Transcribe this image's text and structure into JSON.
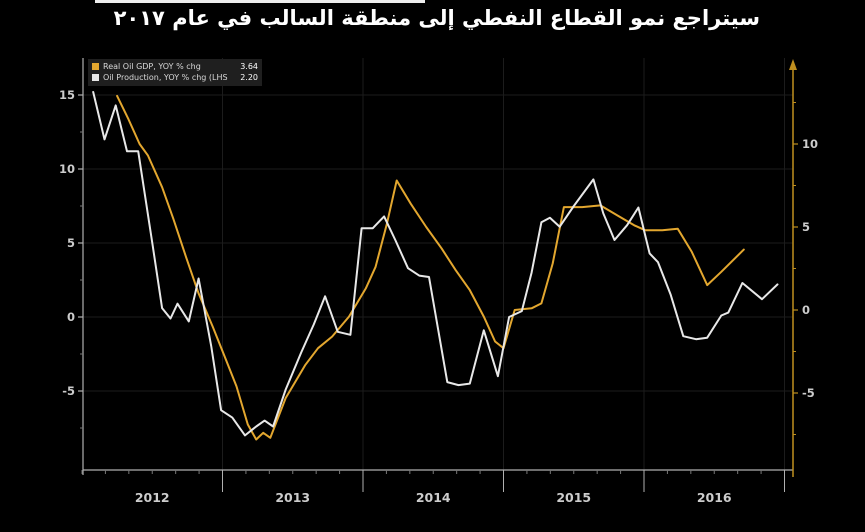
{
  "title": "سيتراجع نمو القطاع النفطي إلى منطقة السالب في عام ٢٠١٧",
  "colors": {
    "background": "#000000",
    "grid": "#1c1c1c",
    "axis": "#b0b0b0",
    "tick_label": "#cccccc",
    "minor_tick": "#777777",
    "right_axis": "#bf8f1f",
    "gdp_series": "#e3a72f",
    "production_series": "#e8e8e8",
    "legend_bg": "#1f1f1f"
  },
  "chart_data": {
    "type": "line",
    "title": "",
    "x_axis": {
      "year_labels": [
        "2012",
        "2013",
        "2014",
        "2015",
        "2016"
      ],
      "range": [
        2012.0,
        2017.06
      ],
      "minor_tick_months": 2
    },
    "left_axis": {
      "tick_labels": [
        "15",
        "10",
        "5",
        "0",
        "-5"
      ],
      "tick_values": [
        15,
        10,
        5,
        0,
        -5
      ],
      "minor_step": 2.5,
      "range": [
        -10.3,
        17.5
      ]
    },
    "right_axis": {
      "tick_labels": [
        "10",
        "5",
        "0",
        "-5"
      ],
      "tick_values": [
        10,
        5,
        0,
        -5
      ],
      "minor_step": 2.5,
      "range": [
        -9.6,
        14.9
      ],
      "arrow": "up"
    },
    "grid": {
      "horizontal_at": [
        15,
        10,
        5,
        0,
        -5
      ],
      "vertical_at_years": [
        2013,
        2014,
        2015,
        2016,
        2017
      ]
    },
    "legend_position": "top-left",
    "series": [
      {
        "name": "Real Oil GDP, YOY % chg",
        "axis": "right",
        "color_key": "gdp_series",
        "last_value_label": "3.64",
        "points": [
          [
            2012.25,
            12.9
          ],
          [
            2012.33,
            11.5
          ],
          [
            2012.41,
            10.0
          ],
          [
            2012.47,
            9.3
          ],
          [
            2012.57,
            7.4
          ],
          [
            2012.65,
            5.5
          ],
          [
            2012.74,
            3.2
          ],
          [
            2012.83,
            1.0
          ],
          [
            2012.93,
            -1.0
          ],
          [
            2013.02,
            -2.9
          ],
          [
            2013.1,
            -4.6
          ],
          [
            2013.18,
            -6.9
          ],
          [
            2013.24,
            -7.8
          ],
          [
            2013.29,
            -7.4
          ],
          [
            2013.34,
            -7.7
          ],
          [
            2013.45,
            -5.3
          ],
          [
            2013.59,
            -3.3
          ],
          [
            2013.68,
            -2.3
          ],
          [
            2013.78,
            -1.6
          ],
          [
            2013.9,
            -0.4
          ],
          [
            2014.02,
            1.3
          ],
          [
            2014.09,
            2.6
          ],
          [
            2014.17,
            5.2
          ],
          [
            2014.24,
            7.8
          ],
          [
            2014.34,
            6.4
          ],
          [
            2014.45,
            5.0
          ],
          [
            2014.56,
            3.7
          ],
          [
            2014.66,
            2.4
          ],
          [
            2014.76,
            1.2
          ],
          [
            2014.86,
            -0.4
          ],
          [
            2014.94,
            -1.9
          ],
          [
            2015.0,
            -2.3
          ],
          [
            2015.08,
            0.0
          ],
          [
            2015.2,
            0.1
          ],
          [
            2015.27,
            0.4
          ],
          [
            2015.35,
            2.8
          ],
          [
            2015.43,
            6.2
          ],
          [
            2015.56,
            6.2
          ],
          [
            2015.69,
            6.3
          ],
          [
            2015.81,
            5.7
          ],
          [
            2015.93,
            5.1
          ],
          [
            2016.01,
            4.8
          ],
          [
            2016.13,
            4.8
          ],
          [
            2016.24,
            4.9
          ],
          [
            2016.34,
            3.5
          ],
          [
            2016.45,
            1.5
          ],
          [
            2016.55,
            2.3
          ],
          [
            2016.71,
            3.64
          ]
        ]
      },
      {
        "name": "Oil Production, YOY % chg (LHS)",
        "axis": "left",
        "color_key": "production_series",
        "last_value_label": "2.20",
        "points": [
          [
            2012.08,
            15.2
          ],
          [
            2012.16,
            12.0
          ],
          [
            2012.24,
            14.3
          ],
          [
            2012.32,
            11.2
          ],
          [
            2012.4,
            11.2
          ],
          [
            2012.5,
            5.0
          ],
          [
            2012.57,
            0.6
          ],
          [
            2012.63,
            -0.1
          ],
          [
            2012.68,
            0.9
          ],
          [
            2012.76,
            -0.3
          ],
          [
            2012.83,
            2.6
          ],
          [
            2012.92,
            -2.0
          ],
          [
            2012.99,
            -6.3
          ],
          [
            2013.07,
            -6.8
          ],
          [
            2013.16,
            -8.0
          ],
          [
            2013.24,
            -7.4
          ],
          [
            2013.3,
            -7.0
          ],
          [
            2013.36,
            -7.4
          ],
          [
            2013.45,
            -4.9
          ],
          [
            2013.56,
            -2.4
          ],
          [
            2013.65,
            -0.5
          ],
          [
            2013.73,
            1.4
          ],
          [
            2013.82,
            -1.0
          ],
          [
            2013.91,
            -1.2
          ],
          [
            2013.99,
            6.0
          ],
          [
            2014.07,
            6.0
          ],
          [
            2014.15,
            6.8
          ],
          [
            2014.23,
            5.2
          ],
          [
            2014.32,
            3.3
          ],
          [
            2014.4,
            2.8
          ],
          [
            2014.47,
            2.7
          ],
          [
            2014.6,
            -4.4
          ],
          [
            2014.68,
            -4.6
          ],
          [
            2014.76,
            -4.5
          ],
          [
            2014.86,
            -0.9
          ],
          [
            2014.96,
            -4.0
          ],
          [
            2015.04,
            0.0
          ],
          [
            2015.13,
            0.4
          ],
          [
            2015.2,
            3.0
          ],
          [
            2015.27,
            6.4
          ],
          [
            2015.33,
            6.7
          ],
          [
            2015.4,
            6.1
          ],
          [
            2015.5,
            7.5
          ],
          [
            2015.64,
            9.3
          ],
          [
            2015.71,
            7.0
          ],
          [
            2015.79,
            5.2
          ],
          [
            2015.88,
            6.2
          ],
          [
            2015.96,
            7.4
          ],
          [
            2016.04,
            4.3
          ],
          [
            2016.1,
            3.7
          ],
          [
            2016.19,
            1.5
          ],
          [
            2016.28,
            -1.3
          ],
          [
            2016.37,
            -1.5
          ],
          [
            2016.45,
            -1.4
          ],
          [
            2016.55,
            0.1
          ],
          [
            2016.6,
            0.3
          ],
          [
            2016.7,
            2.3
          ],
          [
            2016.84,
            1.2
          ],
          [
            2016.95,
            2.2
          ]
        ]
      }
    ]
  }
}
